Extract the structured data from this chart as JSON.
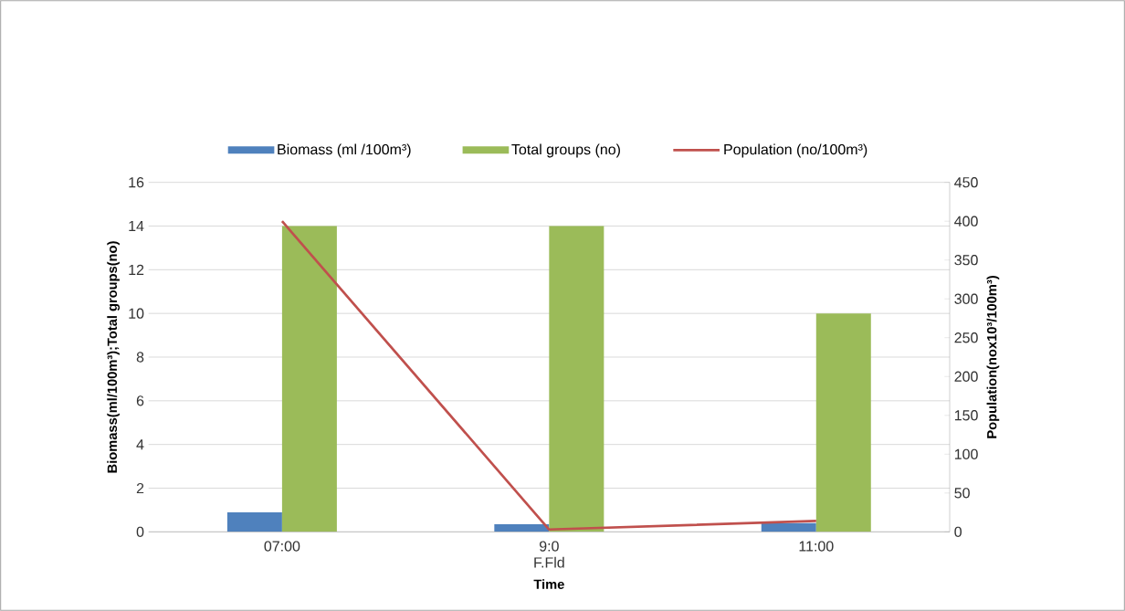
{
  "chart_data": {
    "type": "bar",
    "categories": [
      "07:00",
      "9:0",
      "11:00"
    ],
    "xlabel": "Time",
    "ylabel": "Biomass(ml/100m³);Total groups(no)",
    "y2label": "Population(nox10³/100m³)",
    "annotations": [
      "F.Fld"
    ],
    "series": [
      {
        "name": "Biomass (ml /100m³)",
        "color": "#4f81bd",
        "values": [
          0.9,
          0.35,
          0.4
        ]
      },
      {
        "name": "Total groups (no)",
        "color": "#9bbb59",
        "values": [
          14,
          14,
          10
        ]
      },
      {
        "name": "Population (no/100m³)",
        "color": "#c0504d",
        "type": "line",
        "axis": "y2",
        "values": [
          400,
          3,
          14
        ]
      }
    ],
    "ylim": [
      0,
      16
    ],
    "yticks": [
      0,
      2,
      4,
      6,
      8,
      10,
      12,
      14,
      16
    ],
    "y2lim": [
      0,
      450
    ],
    "y2ticks": [
      0,
      50,
      100,
      150,
      200,
      250,
      300,
      350,
      400,
      450
    ],
    "grid": "y",
    "legend": "top",
    "marker": "none",
    "line_style": "solid"
  }
}
